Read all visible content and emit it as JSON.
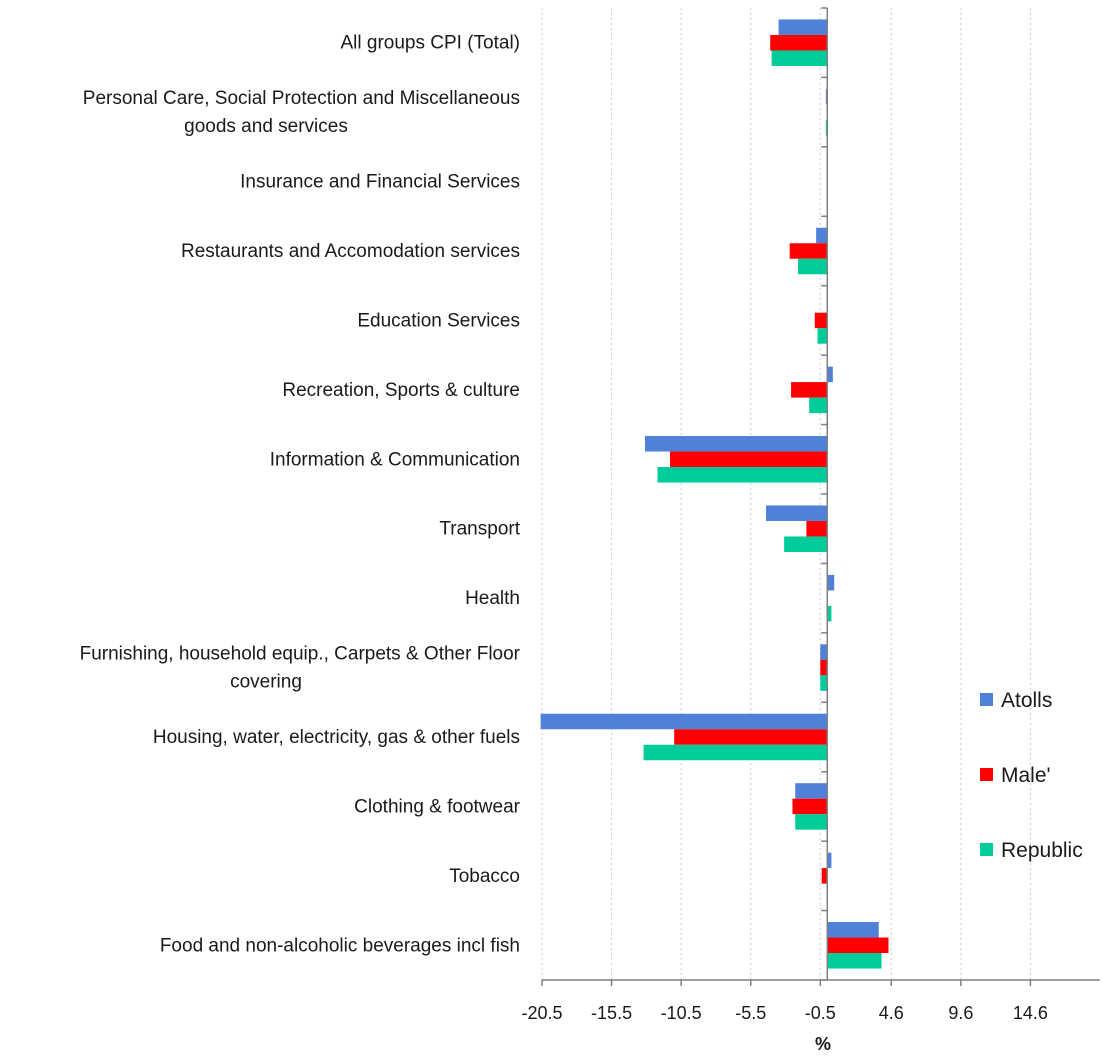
{
  "chart_data": {
    "type": "bar",
    "orientation": "horizontal",
    "title": "",
    "xlabel": "%",
    "ylabel": "",
    "xlim": [
      -20.5,
      19.6
    ],
    "xticks": [
      -20.5,
      -15.5,
      -10.5,
      -5.5,
      -0.5,
      4.6,
      9.6,
      14.6
    ],
    "xtick_labels": [
      "-20.5",
      "-15.5",
      "-10.5",
      "-5.5",
      "-0.5",
      "4.6",
      "9.6",
      "14.6"
    ],
    "grid": "vertical dotted",
    "legend_position": "right",
    "categories": [
      [
        "All groups CPI (Total)"
      ],
      [
        "Personal Care, Social Protection and Miscellaneous",
        "goods and services"
      ],
      [
        "Insurance and Financial Services"
      ],
      [
        "Restaurants and Accomodation services"
      ],
      [
        "Education Services"
      ],
      [
        "Recreation, Sports & culture"
      ],
      [
        "Information & Communication"
      ],
      [
        "Transport"
      ],
      [
        "Health"
      ],
      [
        "Furnishing, household equip., Carpets & Other Floor",
        "covering"
      ],
      [
        "Housing, water, electricity, gas & other fuels"
      ],
      [
        "Clothing & footwear"
      ],
      [
        "Tobacco"
      ],
      [
        "Food and non-alcoholic beverages incl fish"
      ]
    ],
    "series": [
      {
        "name": "Atolls",
        "color": "#4f81d9",
        "values": [
          -3.5,
          -0.1,
          0,
          -0.8,
          0,
          0.4,
          -13.1,
          -4.4,
          0.5,
          -0.5,
          -20.6,
          -2.3,
          0.3,
          3.7
        ]
      },
      {
        "name": "Male'",
        "color": "#ff0000",
        "values": [
          -4.1,
          0,
          0,
          -2.7,
          -0.9,
          -2.6,
          -11.3,
          -1.5,
          0,
          -0.5,
          -11.0,
          -2.5,
          -0.4,
          4.4
        ]
      },
      {
        "name": "Republic",
        "color": "#00cc99",
        "values": [
          -4.0,
          -0.1,
          0,
          -2.1,
          -0.7,
          -1.3,
          -12.2,
          -3.1,
          0.3,
          -0.5,
          -13.2,
          -2.3,
          0,
          3.9
        ]
      }
    ]
  }
}
